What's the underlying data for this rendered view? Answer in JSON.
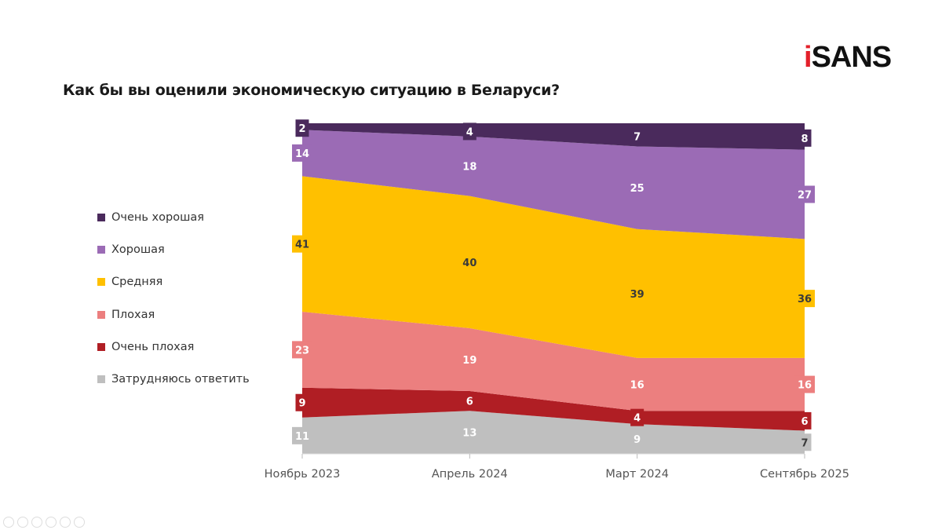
{
  "logo": {
    "i": "i",
    "rest": "SANS"
  },
  "chart_data": {
    "type": "area",
    "stacked": true,
    "title": "Как бы вы оценили экономическую ситуацию в Беларуси?",
    "categories": [
      "Ноябрь 2023",
      "Апрель 2024",
      "Март 2024",
      "Сентябрь 2025"
    ],
    "ylim": [
      0,
      100
    ],
    "grid": false,
    "legend_position": "left",
    "series": [
      {
        "name": "Затрудняюсь ответить",
        "color": "#bfbfbf",
        "values": [
          11,
          13,
          9,
          7
        ]
      },
      {
        "name": "Очень плохая",
        "color": "#b01e24",
        "values": [
          9,
          6,
          4,
          6
        ]
      },
      {
        "name": "Плохая",
        "color": "#ec7f7f",
        "values": [
          23,
          19,
          16,
          16
        ]
      },
      {
        "name": "Средняя",
        "color": "#ffc000",
        "values": [
          41,
          40,
          39,
          36
        ]
      },
      {
        "name": "Хорошая",
        "color": "#9b6bb5",
        "values": [
          14,
          18,
          25,
          27
        ]
      },
      {
        "name": "Очень хорошая",
        "color": "#4a2a5c",
        "values": [
          2,
          4,
          7,
          8
        ]
      }
    ]
  }
}
